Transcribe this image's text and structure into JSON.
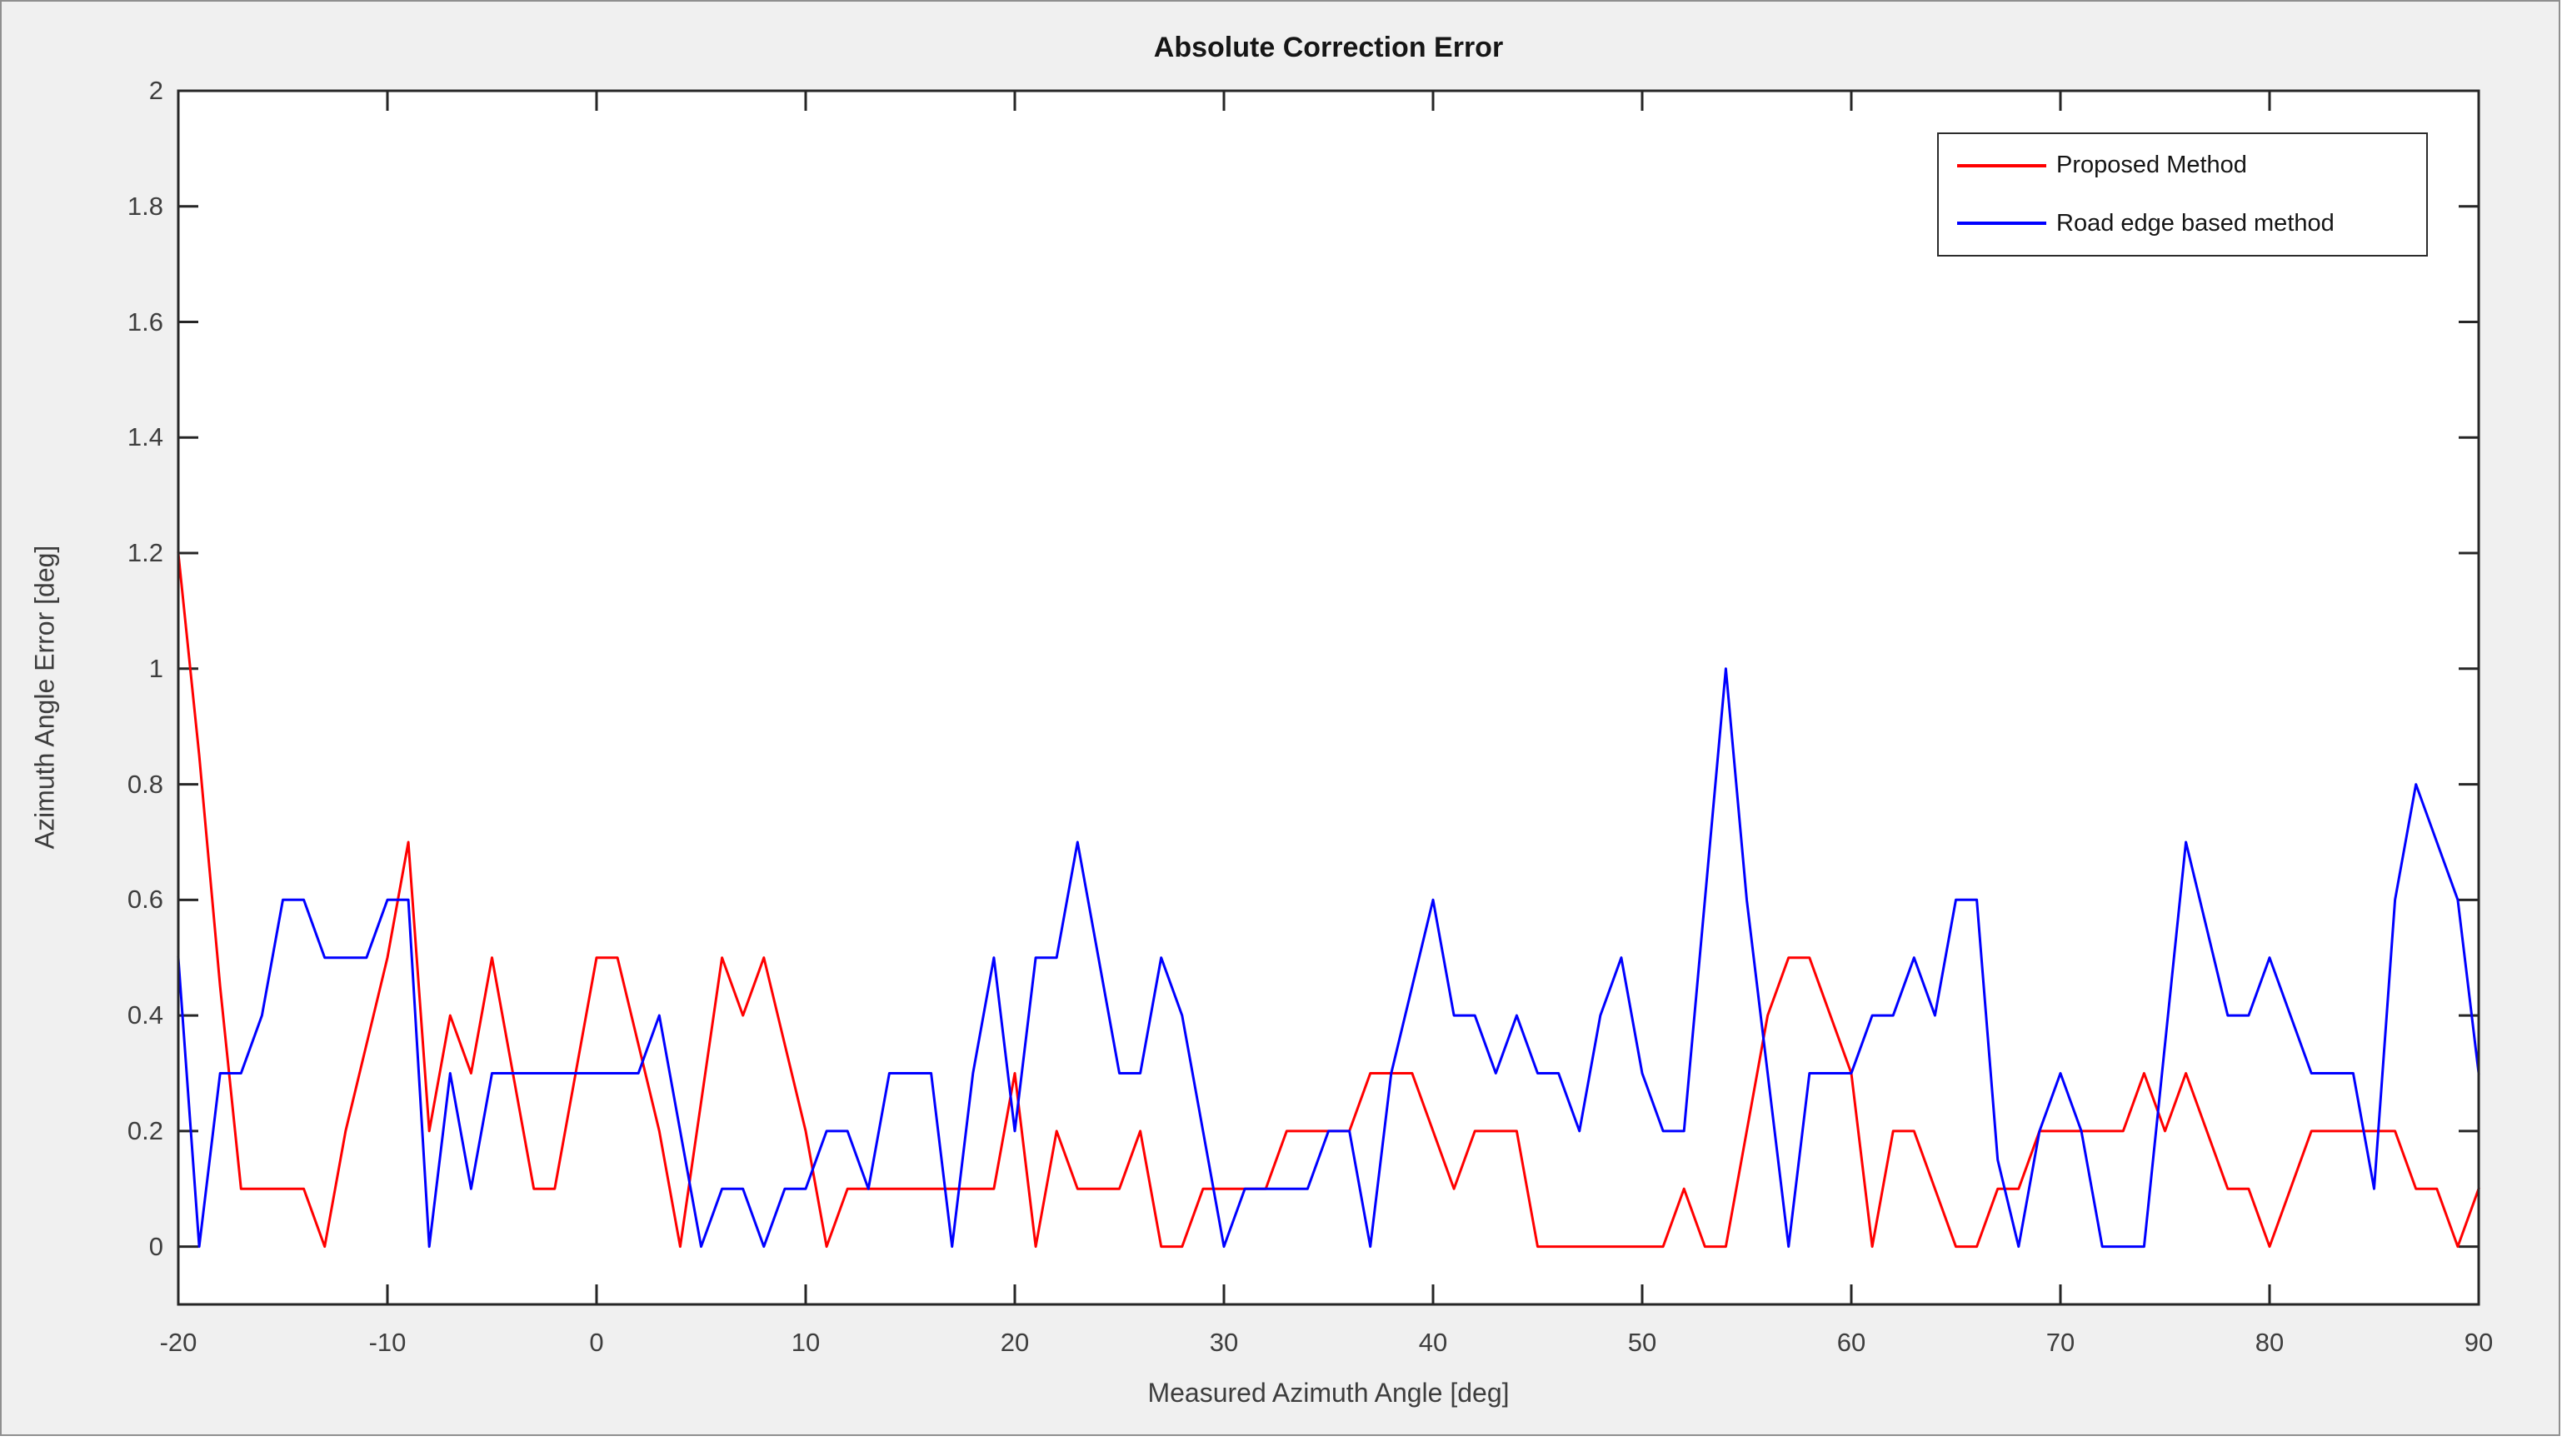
{
  "figure": {
    "background_color": "#f0f0f0",
    "plot_background_color": "#ffffff",
    "axis_color": "#262626",
    "tick_label_color": "#3e3e3e",
    "border_color": "#8f8f8f"
  },
  "chart_data": {
    "type": "line",
    "title": "Absolute Correction Error",
    "xlabel": "Measured Azimuth Angle [deg]",
    "ylabel": "Azimuth Angle Error [deg]",
    "xlim": [
      -20,
      90
    ],
    "ylim": [
      -0.1,
      2
    ],
    "grid": false,
    "legend_position": "top-right-inside",
    "xticks": [
      -20,
      -10,
      0,
      10,
      20,
      30,
      40,
      50,
      60,
      70,
      80,
      90
    ],
    "xtick_labels": [
      "-20",
      "-10",
      "0",
      "10",
      "20",
      "30",
      "40",
      "50",
      "60",
      "70",
      "80",
      "90"
    ],
    "yticks": [
      0,
      0.2,
      0.4,
      0.6,
      0.8,
      1,
      1.2,
      1.4,
      1.6,
      1.8,
      2
    ],
    "ytick_labels": [
      "0",
      "0.2",
      "0.4",
      "0.6",
      "0.8",
      "1",
      "1.2",
      "1.4",
      "1.6",
      "1.8",
      "2"
    ],
    "x": [
      -20,
      -19,
      -18,
      -17,
      -16,
      -15,
      -14,
      -13,
      -12,
      -11,
      -10,
      -9,
      -8,
      -7,
      -6,
      -5,
      -4,
      -3,
      -2,
      -1,
      0,
      1,
      2,
      3,
      4,
      5,
      6,
      7,
      8,
      9,
      10,
      11,
      12,
      13,
      14,
      15,
      16,
      17,
      18,
      19,
      20,
      21,
      22,
      23,
      24,
      25,
      26,
      27,
      28,
      29,
      30,
      31,
      32,
      33,
      34,
      35,
      36,
      37,
      38,
      39,
      40,
      41,
      42,
      43,
      44,
      45,
      46,
      47,
      48,
      49,
      50,
      51,
      52,
      53,
      54,
      55,
      56,
      57,
      58,
      59,
      60,
      61,
      62,
      63,
      64,
      65,
      66,
      67,
      68,
      69,
      70,
      71,
      72,
      73,
      74,
      75,
      76,
      77,
      78,
      79,
      80,
      81,
      82,
      83,
      84,
      85,
      86,
      87,
      88,
      89,
      90
    ],
    "series": [
      {
        "name": "Proposed Method",
        "color": "#ff0000",
        "values": [
          1.2,
          0.85,
          0.45,
          0.1,
          0.1,
          0.1,
          0.1,
          0,
          0.2,
          0.35,
          0.5,
          0.7,
          0.2,
          0.4,
          0.3,
          0.5,
          0.3,
          0.1,
          0.1,
          0.3,
          0.5,
          0.5,
          0.35,
          0.2,
          0,
          0.25,
          0.5,
          0.4,
          0.5,
          0.35,
          0.2,
          0,
          0.1,
          0.1,
          0.1,
          0.1,
          0.1,
          0.1,
          0.1,
          0.1,
          0.3,
          0,
          0.2,
          0.1,
          0.1,
          0.1,
          0.2,
          0,
          0,
          0.1,
          0.1,
          0.1,
          0.1,
          0.2,
          0.2,
          0.2,
          0.2,
          0.3,
          0.3,
          0.3,
          0.2,
          0.1,
          0.2,
          0.2,
          0.2,
          0,
          0,
          0,
          0,
          0,
          0,
          0,
          0.1,
          0,
          0,
          0.2,
          0.4,
          0.5,
          0.5,
          0.4,
          0.3,
          0,
          0.2,
          0.2,
          0.1,
          0,
          0,
          0.1,
          0.1,
          0.2,
          0.2,
          0.2,
          0.2,
          0.2,
          0.3,
          0.2,
          0.3,
          0.2,
          0.1,
          0.1,
          0,
          0.1,
          0.2,
          0.2,
          0.2,
          0.2,
          0.2,
          0.1,
          0.1,
          0,
          0.1
        ]
      },
      {
        "name": "Road edge based method",
        "color": "#0000ff",
        "values": [
          0.5,
          0,
          0.3,
          0.3,
          0.4,
          0.6,
          0.6,
          0.5,
          0.5,
          0.5,
          0.6,
          0.6,
          0,
          0.3,
          0.1,
          0.3,
          0.3,
          0.3,
          0.3,
          0.3,
          0.3,
          0.3,
          0.3,
          0.4,
          0.2,
          0,
          0.1,
          0.1,
          0,
          0.1,
          0.1,
          0.2,
          0.2,
          0.1,
          0.3,
          0.3,
          0.3,
          0,
          0.3,
          0.5,
          0.2,
          0.5,
          0.5,
          0.7,
          0.5,
          0.3,
          0.3,
          0.5,
          0.4,
          0.2,
          0,
          0.1,
          0.1,
          0.1,
          0.1,
          0.2,
          0.2,
          0,
          0.3,
          0.45,
          0.6,
          0.4,
          0.4,
          0.3,
          0.4,
          0.3,
          0.3,
          0.2,
          0.4,
          0.5,
          0.3,
          0.2,
          0.2,
          0.6,
          1.0,
          0.6,
          0.3,
          0,
          0.3,
          0.3,
          0.3,
          0.4,
          0.4,
          0.5,
          0.4,
          0.6,
          0.6,
          0.15,
          0,
          0.2,
          0.3,
          0.2,
          0,
          0,
          0,
          0.35,
          0.7,
          0.55,
          0.4,
          0.4,
          0.5,
          0.4,
          0.3,
          0.3,
          0.3,
          0.1,
          0.6,
          0.8,
          0.7,
          0.6,
          0.3
        ]
      }
    ]
  }
}
